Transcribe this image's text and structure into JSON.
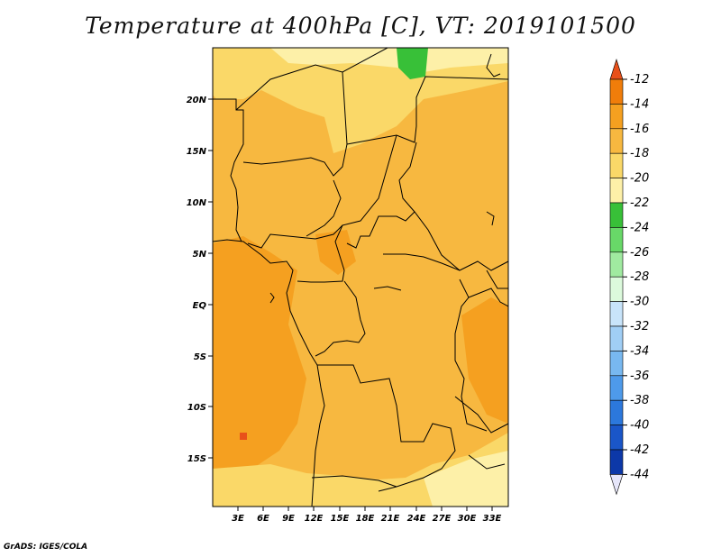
{
  "title": "Temperature at 400hPa [C], VT: 2019101500",
  "credit": "GrADS: IGES/COLA",
  "map": {
    "lat_ticks": [
      "20N",
      "15N",
      "10N",
      "5N",
      "EQ",
      "5S",
      "10S",
      "15S"
    ],
    "lon_ticks": [
      "3E",
      "6E",
      "9E",
      "12E",
      "15E",
      "18E",
      "21E",
      "24E",
      "27E",
      "30E",
      "33E"
    ]
  },
  "colorbar": {
    "labels": [
      "-12",
      "-14",
      "-16",
      "-18",
      "-20",
      "-22",
      "-24",
      "-26",
      "-28",
      "-30",
      "-32",
      "-34",
      "-36",
      "-38",
      "-40",
      "-42",
      "-44"
    ],
    "colors": [
      "#e8501a",
      "#f07d0a",
      "#f5a020",
      "#f7b840",
      "#fad868",
      "#fdf0a8",
      "#38c038",
      "#68d868",
      "#a0eaa0",
      "#dcfadc",
      "#c8e4fa",
      "#a0cef5",
      "#78b8f0",
      "#4e9aea",
      "#2c78dc",
      "#1a56c8",
      "#0c38a8",
      "#0a1478"
    ]
  }
}
